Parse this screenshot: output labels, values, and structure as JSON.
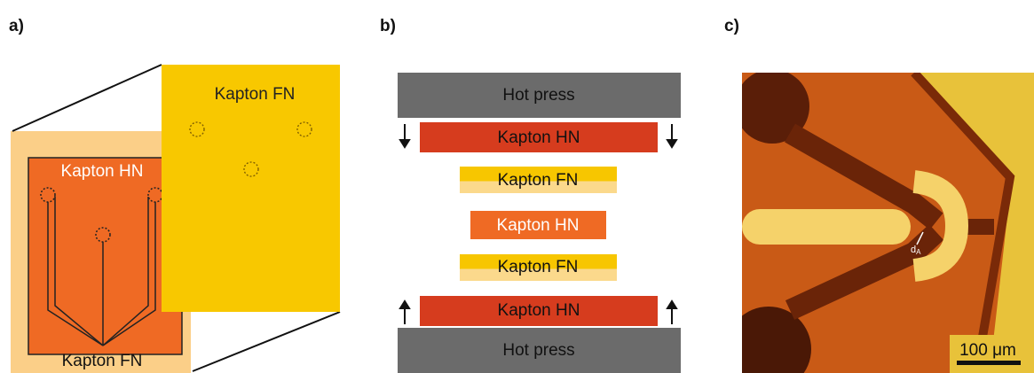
{
  "panels": [
    {
      "label": "a)",
      "texts": [
        "Kapton FN",
        "Kapton HN",
        "Kapton FN"
      ]
    },
    {
      "label": "b)",
      "layers": [
        "Hot press",
        "Kapton HN",
        "Kapton FN",
        "Kapton HN",
        "Kapton FN",
        "Kapton HN",
        "Hot press"
      ]
    },
    {
      "label": "c)",
      "annotation": {
        "symbol": "d",
        "subscript": "A"
      },
      "scale_bar": "100 μm"
    }
  ]
}
